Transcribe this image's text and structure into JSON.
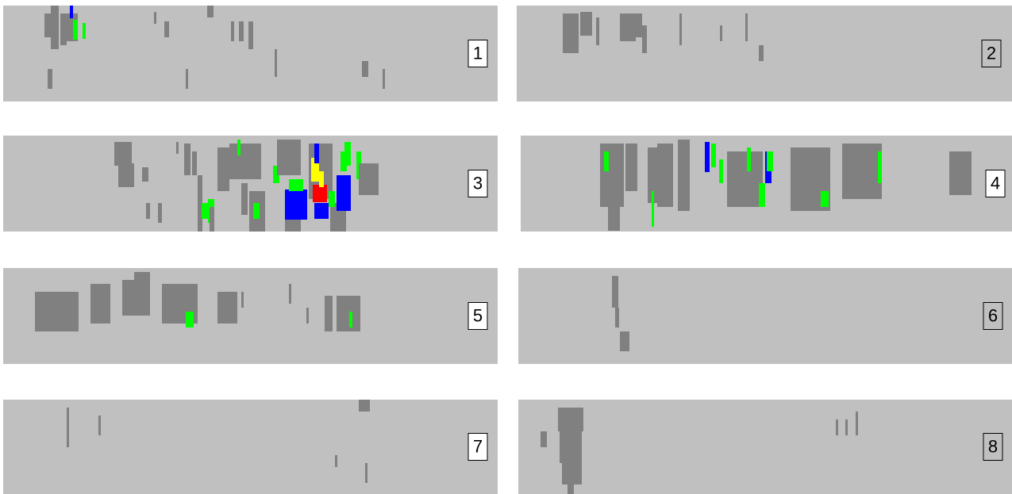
{
  "panels": [
    {
      "label": "1"
    },
    {
      "label": "2"
    },
    {
      "label": "3"
    },
    {
      "label": "4"
    },
    {
      "label": "5"
    },
    {
      "label": "6"
    },
    {
      "label": "7"
    },
    {
      "label": "8"
    }
  ]
}
